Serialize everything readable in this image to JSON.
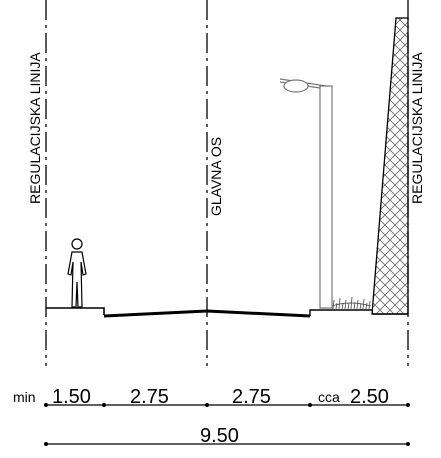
{
  "labels": {
    "regulation_line_left": "REGULACIJSKA LINIJA",
    "main_axis": "GLAVNA OS",
    "regulation_line_right": "REGULACIJSKA LINIJA"
  },
  "dimensions": {
    "segment_1_prefix": "min",
    "segment_1": "1.50",
    "segment_2": "2.75",
    "segment_3": "2.75",
    "segment_4_prefix": "cca",
    "segment_4": "2.50",
    "total": "9.50"
  },
  "colors": {
    "line": "#000000",
    "pole": "#777777",
    "vegetation": "#555555"
  }
}
